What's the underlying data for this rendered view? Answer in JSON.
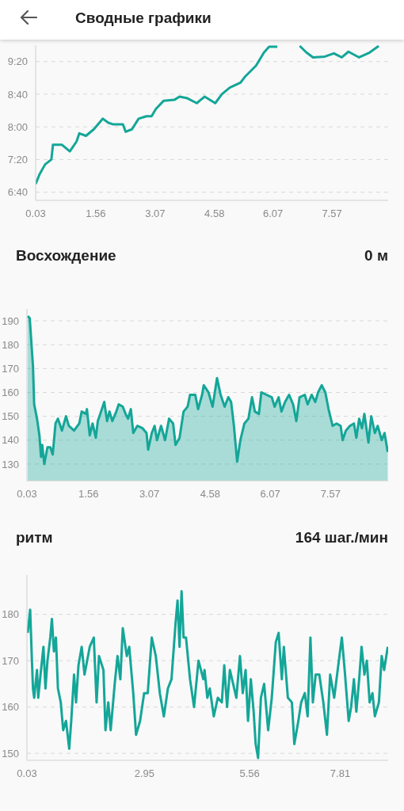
{
  "chart_data": [
    {
      "type": "line",
      "title": "Сводные графики",
      "xlim": [
        0.03,
        9.0
      ],
      "xticks": [
        0.03,
        1.56,
        3.07,
        4.58,
        6.07,
        7.57
      ],
      "ylim": [
        390,
        580
      ],
      "yticks": [
        {
          "value": 400,
          "label": "6:40"
        },
        {
          "value": 440,
          "label": "7:20"
        },
        {
          "value": 480,
          "label": "8:00"
        },
        {
          "value": 520,
          "label": "8:40"
        },
        {
          "value": 560,
          "label": "9:20"
        }
      ],
      "grid": "y",
      "legend": false,
      "marker": "none",
      "line_style": "solid",
      "series": [
        {
          "color": "#14a698",
          "x": [
            0.03,
            0.13,
            0.27,
            0.43,
            0.47,
            0.7,
            0.9,
            1.07,
            1.14,
            1.31,
            1.51,
            1.74,
            1.88,
            2.01,
            2.25,
            2.32,
            2.48,
            2.65,
            2.85,
            2.98,
            3.09,
            3.29,
            3.56,
            3.69,
            3.89,
            4.13,
            4.33,
            4.6,
            4.77,
            4.97,
            5.24,
            5.37,
            5.64,
            5.84,
            5.97,
            6.18,
            6.5,
            6.75,
            6.92,
            7.09,
            7.39,
            7.62,
            7.82,
            7.99,
            8.26,
            8.53,
            8.76
          ],
          "values": [
            410,
            422,
            434,
            440,
            458,
            458,
            450,
            462,
            472,
            469,
            477,
            490,
            485,
            483,
            483,
            474,
            477,
            490,
            493,
            493,
            502,
            512,
            513,
            517,
            515,
            509,
            517,
            509,
            520,
            528,
            534,
            542,
            555,
            571,
            578,
            578,
            null,
            579,
            571,
            565,
            566,
            570,
            565,
            572,
            565,
            571,
            579
          ]
        }
      ]
    },
    {
      "type": "area",
      "title": "Восхождение",
      "annotations": [
        "0 м"
      ],
      "xlim": [
        0.03,
        9.0
      ],
      "xticks": [
        0.03,
        1.56,
        3.07,
        4.58,
        6.07,
        7.57
      ],
      "ylim": [
        123,
        195
      ],
      "yticks": [
        130,
        140,
        150,
        160,
        170,
        180,
        190
      ],
      "grid": "y",
      "legend": false,
      "marker": "none",
      "line_style": "solid",
      "series": [
        {
          "color": "#14a698",
          "x": [
            0.05,
            0.1,
            0.18,
            0.21,
            0.28,
            0.34,
            0.38,
            0.41,
            0.46,
            0.54,
            0.61,
            0.67,
            0.74,
            0.8,
            0.9,
            1.0,
            1.07,
            1.2,
            1.33,
            1.39,
            1.49,
            1.52,
            1.59,
            1.66,
            1.74,
            1.79,
            1.85,
            1.95,
            2.02,
            2.08,
            2.15,
            2.25,
            2.31,
            2.41,
            2.48,
            2.54,
            2.61,
            2.67,
            2.77,
            2.9,
            3.0,
            3.04,
            3.13,
            3.2,
            3.26,
            3.36,
            3.46,
            3.56,
            3.66,
            3.72,
            3.82,
            3.92,
            4.02,
            4.08,
            4.21,
            4.28,
            4.38,
            4.42,
            4.54,
            4.64,
            4.75,
            4.84,
            4.94,
            5.03,
            5.1,
            5.17,
            5.25,
            5.33,
            5.43,
            5.53,
            5.62,
            5.69,
            5.79,
            5.85,
            5.98,
            6.11,
            6.18,
            6.28,
            6.35,
            6.44,
            6.54,
            6.64,
            6.72,
            6.8,
            6.93,
            7.0,
            7.1,
            7.19,
            7.26,
            7.35,
            7.44,
            7.52,
            7.62,
            7.72,
            7.82,
            7.87,
            7.95,
            8.05,
            8.15,
            8.21,
            8.28,
            8.35,
            8.41,
            8.51,
            8.58,
            8.67,
            8.74,
            8.84,
            8.91,
            8.99
          ],
          "values": [
            192,
            191,
            171,
            155,
            149,
            142,
            133,
            138,
            130,
            137,
            137,
            134,
            147,
            149,
            144,
            150,
            146,
            144,
            147,
            152,
            151,
            153,
            142,
            147,
            141,
            148,
            151,
            156,
            148,
            152,
            148,
            152,
            155,
            154,
            151,
            149,
            153,
            143,
            146,
            145,
            143,
            136,
            143,
            146,
            140,
            146,
            140,
            149,
            147,
            138,
            141,
            152,
            154,
            159,
            159,
            153,
            159,
            163,
            160,
            154,
            166,
            159,
            154,
            158,
            156,
            146,
            131,
            140,
            147,
            149,
            158,
            152,
            151,
            160,
            159,
            158,
            154,
            158,
            152,
            156,
            159,
            155,
            148,
            158,
            159,
            155,
            159,
            156,
            160,
            163,
            160,
            153,
            146,
            147,
            146,
            140,
            144,
            146,
            147,
            141,
            149,
            145,
            151,
            139,
            150,
            143,
            146,
            140,
            143,
            135
          ]
        }
      ]
    },
    {
      "type": "line",
      "title": "ритм",
      "annotations": [
        "164 шаг./мин"
      ],
      "xlim": [
        0.03,
        9.0
      ],
      "xticks": [
        0.03,
        2.95,
        5.56,
        7.81
      ],
      "ylim": [
        148.5,
        188.5
      ],
      "yticks": [
        150,
        160,
        170,
        180
      ],
      "grid": "y",
      "legend": false,
      "marker": "none",
      "line_style": "solid",
      "series": [
        {
          "color": "#14a698",
          "x": [
            0.05,
            0.11,
            0.15,
            0.18,
            0.21,
            0.28,
            0.31,
            0.38,
            0.44,
            0.49,
            0.54,
            0.61,
            0.65,
            0.7,
            0.75,
            0.8,
            0.87,
            0.93,
            1.0,
            1.08,
            1.13,
            1.2,
            1.25,
            1.31,
            1.39,
            1.46,
            1.59,
            1.69,
            1.76,
            1.82,
            1.93,
            1.98,
            2.05,
            2.11,
            2.21,
            2.28,
            2.35,
            2.41,
            2.51,
            2.57,
            2.67,
            2.74,
            2.84,
            2.94,
            3.03,
            3.13,
            3.23,
            3.33,
            3.43,
            3.53,
            3.62,
            3.72,
            3.77,
            3.82,
            3.87,
            3.92,
            3.98,
            4.08,
            4.18,
            4.29,
            4.41,
            4.44,
            4.51,
            4.57,
            4.67,
            4.77,
            4.87,
            4.93,
            5.0,
            5.07,
            5.23,
            5.32,
            5.39,
            5.46,
            5.52,
            5.59,
            5.66,
            5.71,
            5.77,
            5.84,
            5.92,
            6.02,
            6.11,
            6.21,
            6.28,
            6.36,
            6.41,
            6.51,
            6.61,
            6.67,
            6.77,
            6.84,
            6.93,
            7.0,
            7.07,
            7.13,
            7.2,
            7.29,
            7.39,
            7.48,
            7.56,
            7.66,
            7.79,
            7.85,
            7.92,
            8.02,
            8.08,
            8.15,
            8.21,
            8.28,
            8.34,
            8.41,
            8.47,
            8.54,
            8.61,
            8.67,
            8.77,
            8.84,
            8.9,
            8.99
          ],
          "values": [
            176,
            181,
            171,
            164,
            162,
            168,
            162,
            168,
            173,
            164,
            170,
            175,
            179,
            172,
            175,
            164,
            161,
            155,
            157,
            151,
            157,
            167,
            161,
            169,
            173,
            167,
            173,
            175,
            161,
            171,
            168,
            155,
            161,
            155,
            165,
            171,
            166,
            177,
            171,
            173,
            163,
            154,
            157,
            163,
            163,
            175,
            171,
            163,
            158,
            164,
            166,
            178,
            183,
            173,
            185,
            175,
            175,
            166,
            160,
            170,
            166,
            168,
            162,
            164,
            158,
            162,
            161,
            169,
            160,
            168,
            162,
            171,
            163,
            168,
            157,
            166,
            159,
            152,
            149,
            162,
            165,
            155,
            162,
            174,
            176,
            166,
            173,
            162,
            161,
            152,
            157,
            161,
            163,
            158,
            175,
            161,
            167,
            167,
            161,
            154,
            167,
            162,
            171,
            175,
            168,
            157,
            160,
            166,
            159,
            166,
            173,
            167,
            170,
            161,
            163,
            158,
            161,
            171,
            168,
            173
          ]
        }
      ]
    }
  ]
}
